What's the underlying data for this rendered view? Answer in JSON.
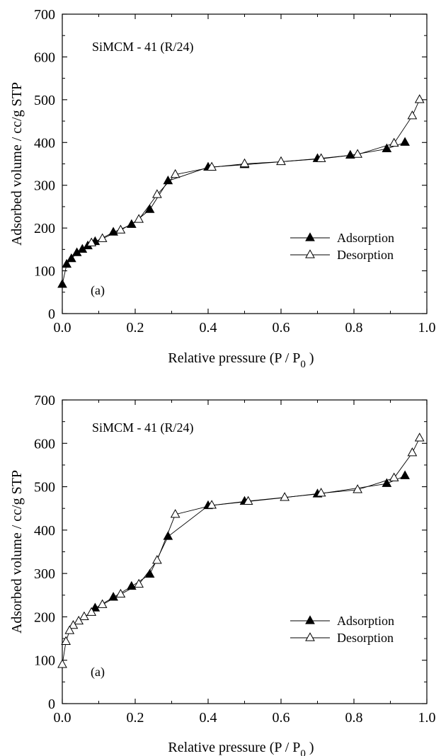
{
  "chart_data": [
    {
      "type": "line",
      "xlabel": "Relative pressure (P / P",
      "xlabel_sub": "0",
      "xlabel_end": ")",
      "ylabel": "Adsorbed volume / cc/g STP",
      "xlim": [
        0,
        1.0
      ],
      "ylim": [
        0,
        700
      ],
      "xticks": [
        "0.0",
        "0.2",
        "0.4",
        "0.6",
        "0.8",
        "1.0"
      ],
      "yticks": [
        "0",
        "100",
        "200",
        "300",
        "400",
        "500",
        "600",
        "700"
      ],
      "xtick_values": [
        0,
        0.2,
        0.4,
        0.6,
        0.8,
        1.0
      ],
      "ytick_values": [
        0,
        100,
        200,
        300,
        400,
        500,
        600,
        700
      ],
      "annotation": "SiMCM - 41 (R/24)",
      "panel_label": "(a)",
      "grid": false,
      "legend_position": "right",
      "series": [
        {
          "name": "Adsorption",
          "marker": "filled-triangle",
          "x": [
            0.0,
            0.012,
            0.025,
            0.04,
            0.055,
            0.07,
            0.09,
            0.14,
            0.19,
            0.24,
            0.29,
            0.4,
            0.5,
            0.7,
            0.79,
            0.89,
            0.94
          ],
          "y": [
            68,
            115,
            128,
            142,
            150,
            158,
            168,
            190,
            208,
            243,
            310,
            342,
            348,
            362,
            370,
            385,
            400
          ]
        },
        {
          "name": "Desorption",
          "marker": "open-triangle",
          "x": [
            0.98,
            0.96,
            0.91,
            0.81,
            0.71,
            0.6,
            0.5,
            0.41,
            0.31,
            0.26,
            0.21,
            0.16,
            0.11,
            0.08
          ],
          "y": [
            500,
            462,
            398,
            372,
            362,
            355,
            350,
            342,
            325,
            278,
            220,
            195,
            175,
            165
          ]
        }
      ]
    },
    {
      "type": "line",
      "xlabel": "Relative pressure (P / P",
      "xlabel_sub": "0",
      "xlabel_end": ")",
      "ylabel": "Adsorbed volume / cc/g STP",
      "xlim": [
        0,
        1.0
      ],
      "ylim": [
        0,
        700
      ],
      "xticks": [
        "0.0",
        "0.2",
        "0.4",
        "0.6",
        "0.8",
        "1.0"
      ],
      "yticks": [
        "0",
        "100",
        "200",
        "300",
        "400",
        "500",
        "600",
        "700"
      ],
      "xtick_values": [
        0,
        0.2,
        0.4,
        0.6,
        0.8,
        1.0
      ],
      "ytick_values": [
        0,
        100,
        200,
        300,
        400,
        500,
        600,
        700
      ],
      "annotation": "SiMCM - 41 (R/24)",
      "panel_label": "(a)",
      "grid": false,
      "legend_position": "right",
      "series": [
        {
          "name": "Adsorption",
          "marker": "filled-triangle",
          "x": [
            0.09,
            0.14,
            0.19,
            0.24,
            0.29,
            0.4,
            0.5,
            0.7,
            0.89,
            0.94
          ],
          "y": [
            220,
            245,
            270,
            298,
            385,
            456,
            466,
            483,
            507,
            525
          ]
        },
        {
          "name": "Desorption",
          "marker": "open-triangle",
          "x": [
            0.98,
            0.96,
            0.91,
            0.81,
            0.71,
            0.61,
            0.51,
            0.41,
            0.31,
            0.26,
            0.21,
            0.16,
            0.11,
            0.08,
            0.06,
            0.045,
            0.03,
            0.02,
            0.01,
            0.0
          ],
          "y": [
            612,
            578,
            520,
            493,
            485,
            475,
            466,
            457,
            436,
            330,
            275,
            252,
            228,
            210,
            200,
            190,
            180,
            168,
            143,
            90
          ]
        }
      ]
    }
  ]
}
